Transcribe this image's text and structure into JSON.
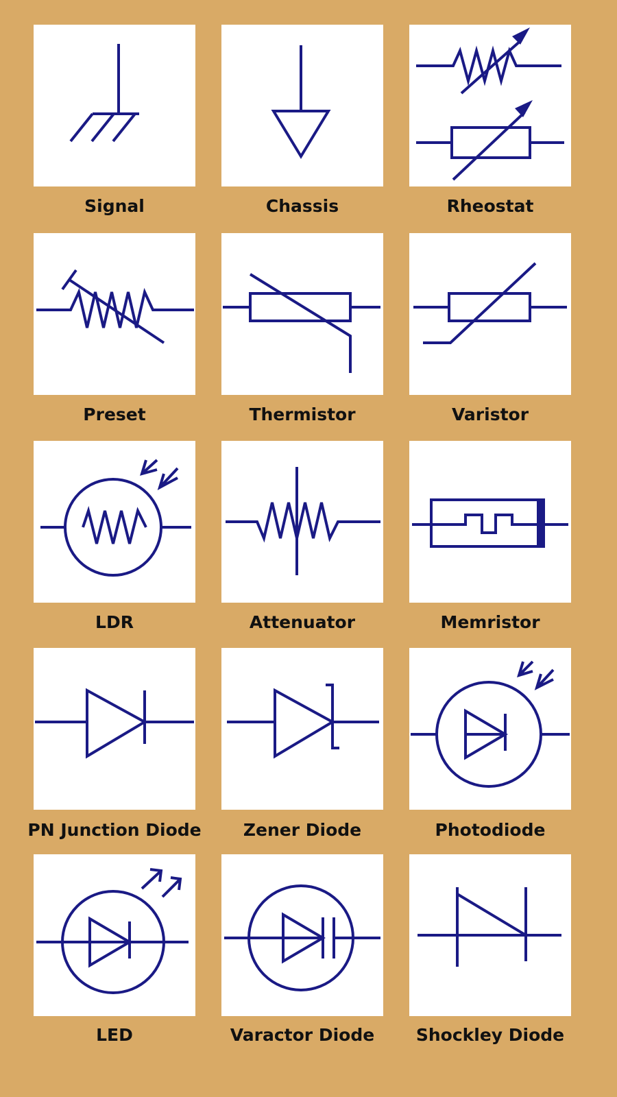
{
  "colors": {
    "background": "#D9AA66",
    "tile": "#FFFFFF",
    "symbol": "#1A1A85",
    "label": "#111111"
  },
  "symbols": [
    {
      "label": "Signal"
    },
    {
      "label": "Chassis"
    },
    {
      "label": "Rheostat"
    },
    {
      "label": "Preset"
    },
    {
      "label": "Thermistor"
    },
    {
      "label": "Varistor"
    },
    {
      "label": "LDR"
    },
    {
      "label": "Attenuator"
    },
    {
      "label": "Memristor"
    },
    {
      "label": "PN Junction Diode"
    },
    {
      "label": "Zener Diode"
    },
    {
      "label": "Photodiode"
    },
    {
      "label": "LED"
    },
    {
      "label": "Varactor Diode"
    },
    {
      "label": "Shockley Diode"
    }
  ]
}
